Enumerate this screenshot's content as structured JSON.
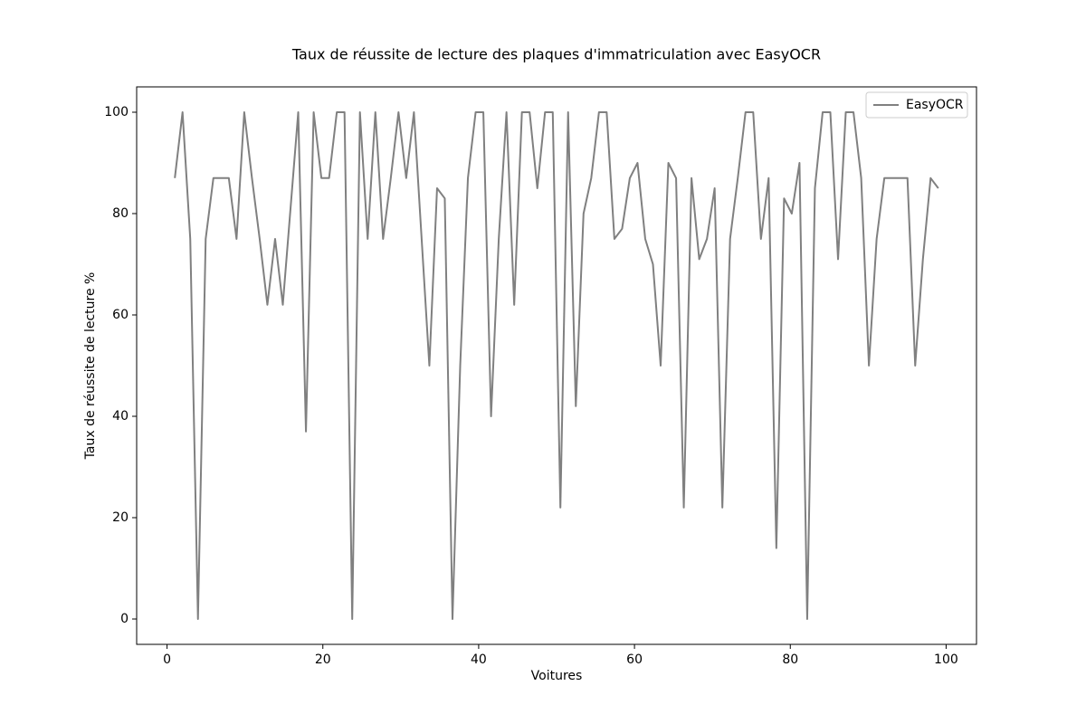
{
  "chart_data": {
    "type": "line",
    "title": "Taux de réussite de lecture des plaques d'immatriculation avec EasyOCR",
    "xlabel": "Voitures",
    "ylabel": "Taux de réussite de lecture %",
    "x": [
      1.0,
      1.99,
      2.98,
      3.97,
      4.96,
      5.95,
      6.94,
      7.93,
      8.92,
      9.91,
      10.9,
      11.89,
      12.88,
      13.87,
      14.86,
      15.85,
      16.84,
      17.83,
      18.82,
      19.81,
      20.8,
      21.79,
      22.78,
      23.77,
      24.76,
      25.75,
      26.74,
      27.73,
      28.72,
      29.71,
      30.7,
      31.69,
      32.68,
      33.67,
      34.66,
      35.65,
      36.64,
      37.63,
      38.62,
      39.61,
      40.6,
      41.59,
      42.58,
      43.57,
      44.56,
      45.55,
      46.54,
      47.53,
      48.52,
      49.51,
      50.49,
      51.48,
      52.47,
      53.46,
      54.45,
      55.44,
      56.43,
      57.42,
      58.41,
      59.4,
      60.39,
      61.38,
      62.37,
      63.36,
      64.35,
      65.34,
      66.33,
      67.32,
      68.31,
      69.3,
      70.29,
      71.28,
      72.27,
      73.26,
      74.25,
      75.24,
      76.23,
      77.22,
      78.21,
      79.2,
      80.19,
      81.18,
      82.17,
      83.16,
      84.15,
      85.14,
      86.13,
      87.12,
      88.11,
      89.1,
      90.09,
      91.08,
      92.07,
      93.06,
      94.05,
      95.04,
      96.03,
      97.02,
      98.01,
      99.0
    ],
    "series": [
      {
        "name": "EasyOCR",
        "color": "#808080",
        "values": [
          87,
          100,
          75,
          0,
          75,
          87,
          87,
          87,
          75,
          100,
          87,
          75,
          62,
          75,
          62,
          81,
          100,
          37,
          100,
          87,
          87,
          100,
          100,
          0,
          100,
          75,
          100,
          75,
          87,
          100,
          87,
          100,
          75,
          50,
          85,
          83,
          0,
          50,
          87,
          100,
          100,
          40,
          75,
          100,
          62,
          100,
          100,
          85,
          100,
          100,
          22,
          100,
          42,
          80,
          87,
          100,
          100,
          75,
          77,
          87,
          90,
          75,
          70,
          50,
          90,
          87,
          22,
          87,
          71,
          75,
          85,
          22,
          75,
          87,
          100,
          100,
          75,
          87,
          14,
          83,
          80,
          90,
          0,
          85,
          100,
          100,
          71,
          100,
          100,
          87,
          50,
          75,
          87,
          87,
          87,
          87,
          50,
          71,
          87,
          85
        ]
      }
    ],
    "xlim": [
      -3.9,
      103.9
    ],
    "ylim": [
      -5,
      105
    ],
    "xticks": [
      0,
      20,
      40,
      60,
      80,
      100
    ],
    "yticks": [
      0,
      20,
      40,
      60,
      80,
      100
    ],
    "legend": "upper right"
  }
}
